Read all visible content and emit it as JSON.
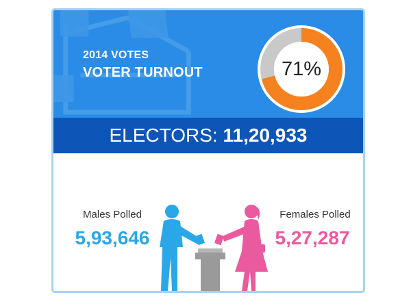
{
  "header": {
    "kicker": "2014 VOTES",
    "title": "VOTER TURNOUT"
  },
  "turnout": {
    "label": "71%",
    "fraction": 0.71
  },
  "electors": {
    "label": "ELECTORS: ",
    "value": "11,20,933"
  },
  "males": {
    "label": "Males Polled",
    "value": "5,93,646"
  },
  "females": {
    "label": "Females Polled",
    "value": "5,27,287"
  },
  "colors": {
    "header_bg": "#2a8ce6",
    "electors_bg": "#0d56b8",
    "donut_fill": "#f5821f",
    "donut_track": "#c9c9c9",
    "male": "#2aa7e6",
    "female": "#ea5a9f",
    "ballot_box": "#9a9a9a"
  },
  "icons": [
    "ballot-box-watermark-icon",
    "male-voter-icon",
    "female-voter-icon",
    "ballot-box-icon"
  ]
}
